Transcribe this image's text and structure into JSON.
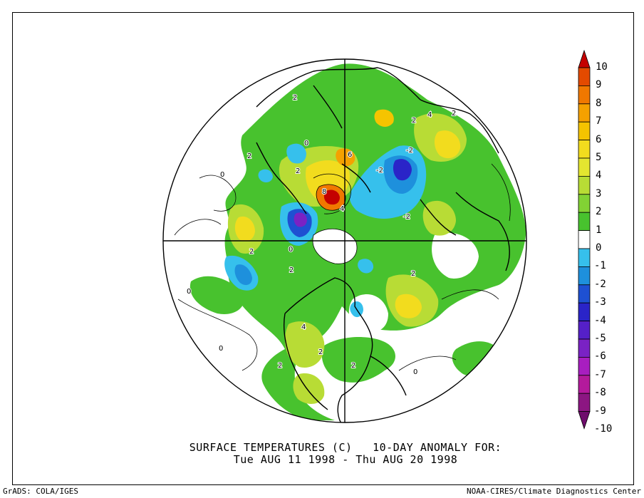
{
  "title": {
    "line1": "SURFACE TEMPERATURES (C)   10-DAY ANOMALY FOR:",
    "line2": "Tue AUG 11 1998 - Thu AUG 20 1998"
  },
  "footer": {
    "left": "GrADS: COLA/IGES",
    "right": "NOAA-CIRES/Climate Diagnostics Center"
  },
  "map": {
    "projection": "north polar stereographic",
    "contour_labels": [
      "2",
      "0",
      "2",
      "2",
      "6",
      "8",
      "4",
      "-2",
      "-2",
      "2",
      "4",
      "2",
      "0",
      "2",
      "2",
      "2",
      "4",
      "2",
      "2",
      "0",
      "0",
      "0",
      "2",
      "0",
      "-2"
    ]
  },
  "colorbar": {
    "levels": [
      "10",
      "9",
      "8",
      "7",
      "6",
      "5",
      "4",
      "3",
      "2",
      "1",
      "0",
      "-1",
      "-2",
      "-3",
      "-4",
      "-5",
      "-6",
      "-7",
      "-8",
      "-9",
      "-10"
    ],
    "colors": [
      "#c40000",
      "#e34a00",
      "#f07800",
      "#f5a100",
      "#f5c400",
      "#f2dc1e",
      "#e4e630",
      "#b8dc35",
      "#82d234",
      "#48c22e",
      "#ffffff",
      "#36c0ec",
      "#1e90dc",
      "#1e50d2",
      "#2a24c8",
      "#5520c8",
      "#7a22c4",
      "#a81ec0",
      "#b41a9c",
      "#8c1682",
      "#6e0c6c"
    ]
  }
}
